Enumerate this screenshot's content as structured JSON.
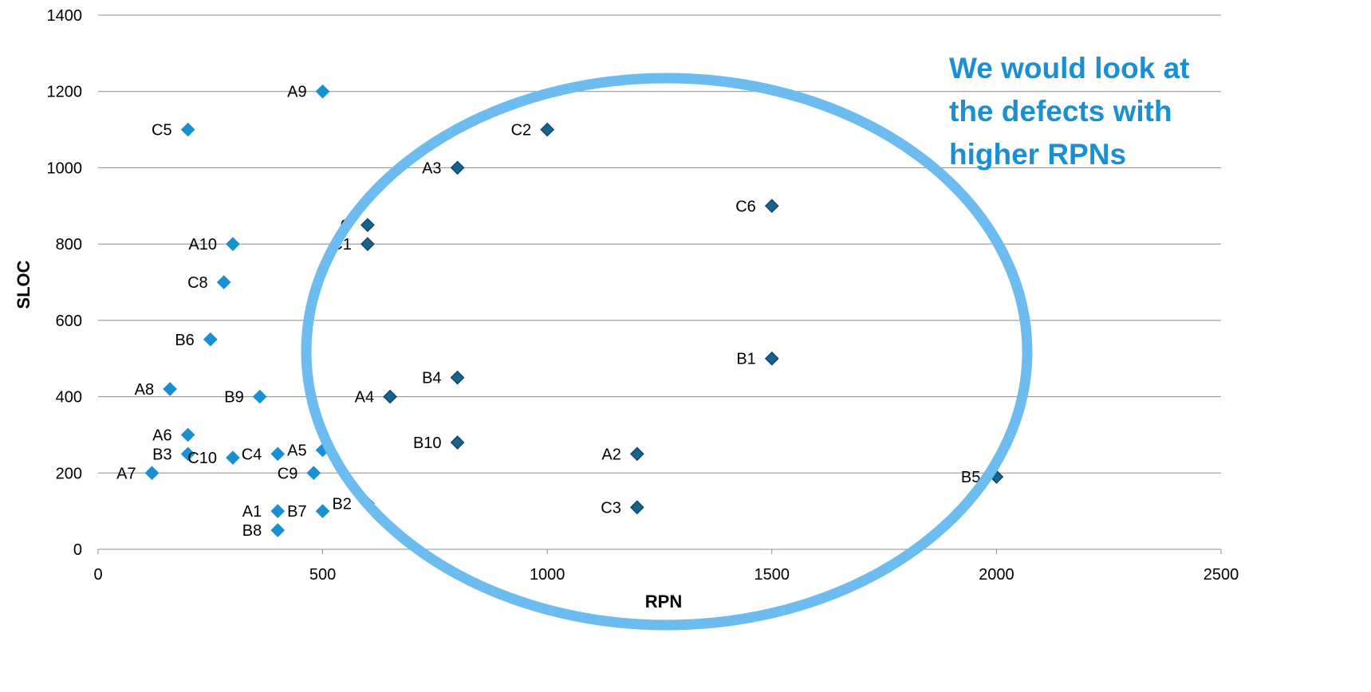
{
  "chart_data": {
    "type": "scatter",
    "title": "",
    "xlabel": "RPN",
    "ylabel": "SLOC",
    "xlim": [
      0,
      2500
    ],
    "ylim": [
      0,
      1400
    ],
    "xticks": [
      0,
      500,
      1000,
      1500,
      2000,
      2500
    ],
    "yticks": [
      0,
      200,
      400,
      600,
      800,
      1000,
      1200,
      1400
    ],
    "grid": "horizontal",
    "legend": "none",
    "points": [
      {
        "label": "A9",
        "x": 500,
        "y": 1200,
        "group": "light"
      },
      {
        "label": "C5",
        "x": 200,
        "y": 1100,
        "group": "light"
      },
      {
        "label": "C2",
        "x": 1000,
        "y": 1100,
        "group": "dark"
      },
      {
        "label": "A3",
        "x": 800,
        "y": 1000,
        "group": "dark"
      },
      {
        "label": "C6",
        "x": 1500,
        "y": 900,
        "group": "dark"
      },
      {
        "label": "C",
        "x": 600,
        "y": 850,
        "group": "dark"
      },
      {
        "label": "A10",
        "x": 300,
        "y": 800,
        "group": "light"
      },
      {
        "label": "C1",
        "x": 600,
        "y": 800,
        "group": "dark"
      },
      {
        "label": "C8",
        "x": 280,
        "y": 700,
        "group": "light"
      },
      {
        "label": "B6",
        "x": 250,
        "y": 550,
        "group": "light"
      },
      {
        "label": "B1",
        "x": 1500,
        "y": 500,
        "group": "dark"
      },
      {
        "label": "B4",
        "x": 800,
        "y": 450,
        "group": "dark"
      },
      {
        "label": "A8",
        "x": 160,
        "y": 420,
        "group": "light"
      },
      {
        "label": "B9",
        "x": 360,
        "y": 400,
        "group": "light"
      },
      {
        "label": "A4",
        "x": 650,
        "y": 400,
        "group": "dark"
      },
      {
        "label": "A6",
        "x": 200,
        "y": 300,
        "group": "light"
      },
      {
        "label": "B10",
        "x": 800,
        "y": 280,
        "group": "dark"
      },
      {
        "label": "B3",
        "x": 200,
        "y": 250,
        "group": "light"
      },
      {
        "label": "C4",
        "x": 400,
        "y": 250,
        "group": "light"
      },
      {
        "label": "A5",
        "x": 500,
        "y": 260,
        "group": "light"
      },
      {
        "label": "A2",
        "x": 1200,
        "y": 250,
        "group": "dark"
      },
      {
        "label": "C10",
        "x": 300,
        "y": 240,
        "group": "light"
      },
      {
        "label": "A7",
        "x": 120,
        "y": 200,
        "group": "light"
      },
      {
        "label": "C9",
        "x": 480,
        "y": 200,
        "group": "light"
      },
      {
        "label": "B5",
        "x": 2000,
        "y": 190,
        "group": "dark"
      },
      {
        "label": "B2",
        "x": 600,
        "y": 120,
        "group": "dark"
      },
      {
        "label": "C3",
        "x": 1200,
        "y": 110,
        "group": "dark"
      },
      {
        "label": "A1",
        "x": 400,
        "y": 100,
        "group": "light"
      },
      {
        "label": "B7",
        "x": 500,
        "y": 100,
        "group": "light"
      },
      {
        "label": "B8",
        "x": 400,
        "y": 50,
        "group": "light"
      }
    ],
    "colors": {
      "light": "#1a8fd1",
      "dark": "#17628f",
      "ellipse": "#6cbcef",
      "callout": "#1a8fd1"
    },
    "annotation": {
      "lines": [
        "We would look at",
        "the defects with",
        "higher RPNs"
      ]
    }
  }
}
